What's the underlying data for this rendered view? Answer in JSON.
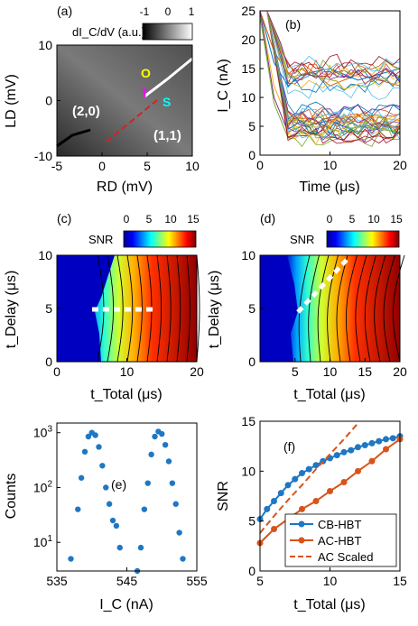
{
  "panels": {
    "a": {
      "label": "(a)",
      "colorbar": {
        "label": "dI_C/dV (a.u.)",
        "ticks": [
          "-1",
          "0",
          "1"
        ]
      },
      "xlabel": "RD (mV)",
      "ylabel": "LD (mV)",
      "xticks": [
        "-5",
        "0",
        "5",
        "10"
      ],
      "yticks": [
        "-10",
        "0",
        "10"
      ],
      "annotations": {
        "region_left": "(2,0)",
        "region_right": "(1,1)",
        "O": "O",
        "T": "T",
        "S": "S"
      }
    },
    "b": {
      "label": "(b)",
      "xlabel": "Time (μs)",
      "ylabel": "I_C (nA)",
      "xticks": [
        "0",
        "10",
        "20"
      ],
      "yticks": [
        "0",
        "5",
        "10",
        "15",
        "20",
        "25"
      ]
    },
    "c": {
      "label": "(c)",
      "colorbar": {
        "label": "SNR",
        "ticks": [
          "0",
          "5",
          "10",
          "15"
        ]
      },
      "xlabel": "t_Total (μs)",
      "ylabel": "t_Delay (μs)",
      "xticks": [
        "0",
        "10",
        "20"
      ],
      "yticks": [
        "0",
        "5",
        "10"
      ]
    },
    "d": {
      "label": "(d)",
      "colorbar": {
        "label": "SNR",
        "ticks": [
          "0",
          "5",
          "10",
          "15"
        ]
      },
      "xlabel": "t_Total (μs)",
      "ylabel": "t_Delay (μs)",
      "xticks": [
        "5",
        "10",
        "15",
        "20"
      ],
      "yticks": [
        "0",
        "5",
        "10"
      ]
    },
    "e": {
      "label": "(e)",
      "xlabel": "I_C (nA)",
      "ylabel": "Counts",
      "xticks": [
        "535",
        "545",
        "555"
      ],
      "xticks_minor": [
        "540",
        "550"
      ],
      "yticks": [
        "10^1",
        "10^2",
        "10^3"
      ]
    },
    "f": {
      "label": "(f)",
      "xlabel": "t_Total (μs)",
      "ylabel": "SNR",
      "xticks": [
        "5",
        "10",
        "15"
      ],
      "yticks": [
        "0",
        "5",
        "10",
        "15"
      ]
    }
  },
  "colors": {
    "cb": "#1f77c4",
    "ac": "#d95319",
    "ac_scaled": "#d95319"
  },
  "chart_data": [
    {
      "panel": "a",
      "type": "heatmap",
      "xlim": [
        -5,
        10
      ],
      "ylim": [
        -10,
        10
      ],
      "features": [
        {
          "name": "transition line lower",
          "x": [
            -5,
            -3,
            -1,
            0
          ],
          "y": [
            -8.8,
            -7.3,
            -6.3,
            -6.5
          ]
        },
        {
          "name": "detuning axis",
          "x": [
            0,
            6
          ],
          "y": [
            -6.5,
            0
          ]
        },
        {
          "name": "transition line upper",
          "x": [
            6,
            8,
            10
          ],
          "y": [
            1.5,
            4,
            6.5
          ]
        }
      ]
    },
    {
      "panel": "b",
      "type": "line",
      "xlim": [
        0,
        20
      ],
      "ylim": [
        0,
        25
      ],
      "series_summary": "many single-shot traces decaying from ~25 nA to ~3-17 nA",
      "series": [
        {
          "x": [
            0,
            2,
            4,
            6,
            10,
            14,
            20
          ],
          "y": [
            25,
            16,
            12,
            14,
            15,
            13,
            15
          ]
        },
        {
          "x": [
            0,
            2,
            4,
            6,
            10,
            14,
            20
          ],
          "y": [
            25,
            18,
            14,
            16,
            12,
            14,
            12
          ]
        },
        {
          "x": [
            0,
            2,
            4,
            6,
            10,
            14,
            20
          ],
          "y": [
            25,
            12,
            6,
            6,
            5,
            7,
            6
          ]
        },
        {
          "x": [
            0,
            2,
            4,
            6,
            10,
            14,
            20
          ],
          "y": [
            25,
            10,
            4,
            5,
            6,
            4,
            5
          ]
        },
        {
          "x": [
            0,
            2,
            4,
            6,
            10,
            14,
            20
          ],
          "y": [
            24,
            9,
            3,
            4,
            3,
            5,
            4
          ]
        }
      ]
    },
    {
      "panel": "c",
      "type": "heatmap",
      "xlim": [
        0,
        20
      ],
      "ylim": [
        0,
        10
      ],
      "zlim": [
        0,
        15
      ],
      "optimal_path": {
        "x": [
          5,
          14
        ],
        "y": [
          5,
          5
        ]
      }
    },
    {
      "panel": "d",
      "type": "heatmap",
      "xlim": [
        0,
        20
      ],
      "ylim": [
        0,
        10
      ],
      "zlim": [
        0,
        15
      ],
      "optimal_path": {
        "x": [
          4,
          13
        ],
        "y": [
          5,
          9.5
        ]
      }
    },
    {
      "panel": "e",
      "type": "scatter",
      "xlim": [
        535,
        555
      ],
      "ylim_log": [
        3,
        1500
      ],
      "x": [
        537,
        538,
        538.5,
        539,
        539.5,
        540,
        540.5,
        541,
        541.5,
        542,
        542.5,
        543,
        543.5,
        544,
        546.5,
        547,
        547.5,
        548,
        548.5,
        549,
        549.5,
        550,
        550.5,
        551,
        551.5,
        552,
        552.5,
        553
      ],
      "y": [
        5,
        40,
        150,
        450,
        850,
        1000,
        900,
        550,
        250,
        100,
        50,
        25,
        20,
        8,
        3,
        8,
        40,
        120,
        400,
        850,
        1050,
        950,
        600,
        300,
        120,
        50,
        15,
        5
      ]
    },
    {
      "panel": "f",
      "type": "line",
      "xlim": [
        5,
        15
      ],
      "ylim": [
        0,
        15
      ],
      "legend": "bottom-right",
      "series": [
        {
          "name": "CB-HBT",
          "x": [
            5,
            5.5,
            6,
            6.5,
            7,
            7.5,
            8,
            8.5,
            9,
            9.5,
            10,
            10.5,
            11,
            11.5,
            12,
            12.5,
            13,
            13.5,
            14,
            14.5,
            15
          ],
          "y": [
            5.2,
            6.2,
            7.0,
            7.8,
            8.6,
            9.2,
            9.8,
            10.2,
            10.6,
            11.0,
            11.3,
            11.6,
            11.9,
            12.1,
            12.4,
            12.6,
            12.8,
            13.0,
            13.2,
            13.3,
            13.5
          ]
        },
        {
          "name": "AC-HBT",
          "x": [
            5,
            6,
            7,
            8,
            9,
            10,
            11,
            12,
            13,
            14,
            15
          ],
          "y": [
            2.8,
            4.2,
            5.2,
            6.2,
            7.0,
            8.0,
            8.9,
            10.0,
            11.0,
            12.2,
            13.2
          ]
        },
        {
          "name": "AC Scaled",
          "x": [
            5,
            6,
            7,
            8,
            9,
            10,
            11,
            12
          ],
          "y": [
            3.8,
            5.5,
            7.1,
            8.6,
            10.2,
            11.7,
            13.2,
            14.8
          ]
        }
      ]
    }
  ]
}
